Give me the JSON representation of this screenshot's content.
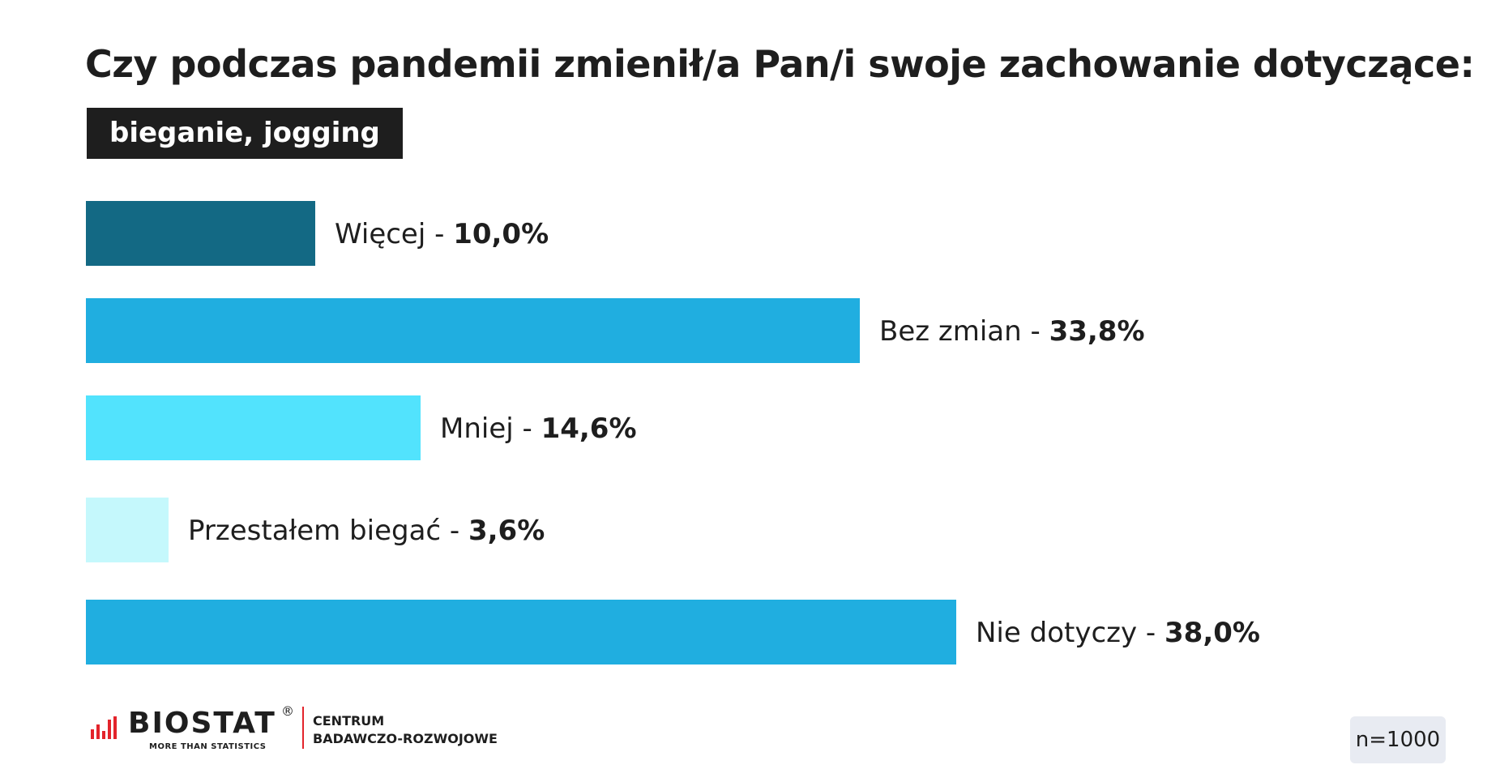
{
  "chart_data": {
    "type": "bar",
    "orientation": "horizontal",
    "title": "Czy podczas pandemii zmienił/a Pan/i swoje zachowanie dotyczące:",
    "subtitle": "bieganie, jogging",
    "categories": [
      "Więcej",
      "Bez zmian",
      "Mniej",
      "Przestałem biegać",
      "Nie dotyczy"
    ],
    "values": [
      10.0,
      33.8,
      14.6,
      3.6,
      38.0
    ],
    "value_labels": [
      "10,0%",
      "33,8%",
      "14,6%",
      "3,6%",
      "38,0%"
    ],
    "colors": [
      "#136984",
      "#20aee0",
      "#52e3fd",
      "#c5f8fc",
      "#20aee0"
    ],
    "separator": " - ",
    "unit": "%",
    "xlim": [
      0,
      38.0
    ],
    "grid": false,
    "legend": "none"
  },
  "footer": {
    "brand_name": "BIOSTAT",
    "brand_registered": "®",
    "brand_tagline": "MORE THAN STATISTICS",
    "center_line1": "CENTRUM",
    "center_line2": "BADAWCZO-ROZWOJOWE",
    "sample_size": "n=1000"
  },
  "colors": {
    "text": "#1e1e1e",
    "subtitle_bg": "#1e1e1e",
    "logo_accent": "#e3242b",
    "sample_bg": "#e8ebf2"
  }
}
